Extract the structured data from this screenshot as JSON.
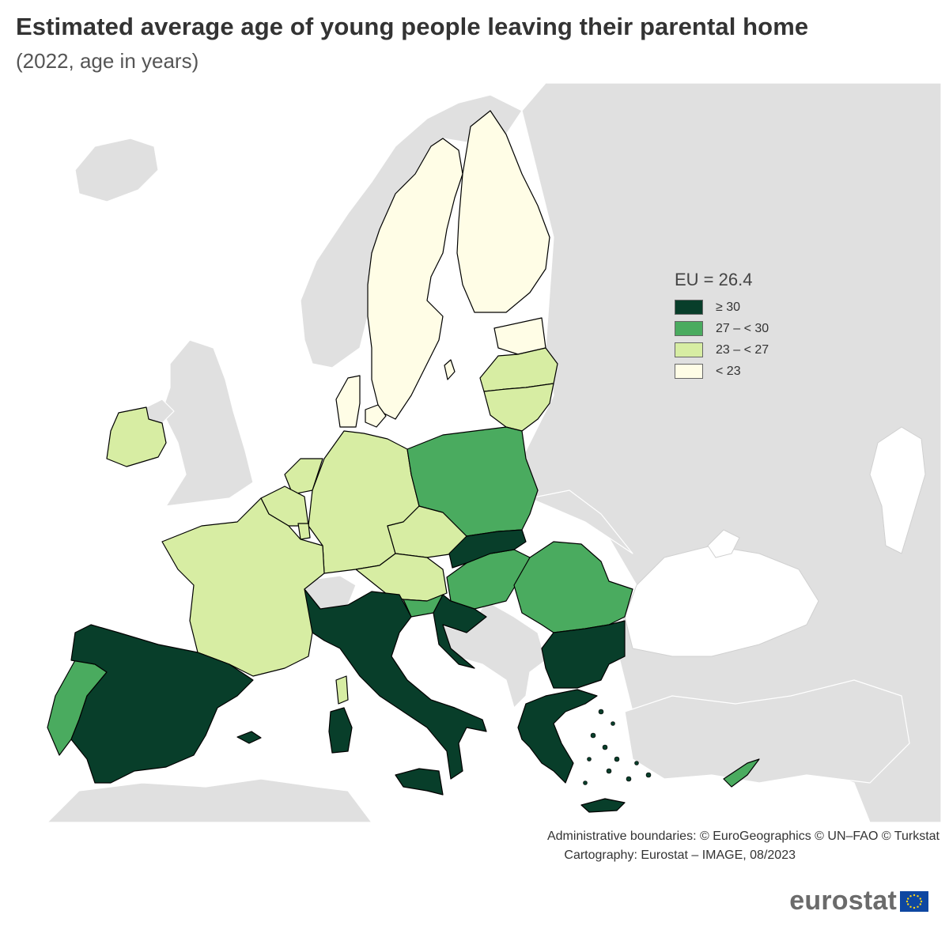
{
  "title": "Estimated average age of young people leaving their parental home",
  "subtitle": "(2022, age in years)",
  "legend": {
    "title": "EU = 26.4",
    "items": [
      {
        "label": "≥ 30",
        "color": "#083e2a"
      },
      {
        "label": "27 – < 30",
        "color": "#4aab5f"
      },
      {
        "label": "23 – < 27",
        "color": "#d7eda3"
      },
      {
        "label": "< 23",
        "color": "#fffde6"
      }
    ]
  },
  "colors": {
    "sea": "#ffffff",
    "land_no_data": "#e0e0e0",
    "border": "#000000",
    "credit_text": "#333333",
    "brand_text": "#6b6b6b",
    "eu_flag_blue": "#0e47a1",
    "eu_flag_stars": "#ffd617"
  },
  "credits": {
    "line1": "Administrative boundaries: © EuroGeographics © UN–FAO © Turkstat",
    "line2": "Cartography: Eurostat – IMAGE, 08/2023"
  },
  "logo": {
    "text": "eurostat",
    "flag_icon": "eu-flag-icon"
  }
}
